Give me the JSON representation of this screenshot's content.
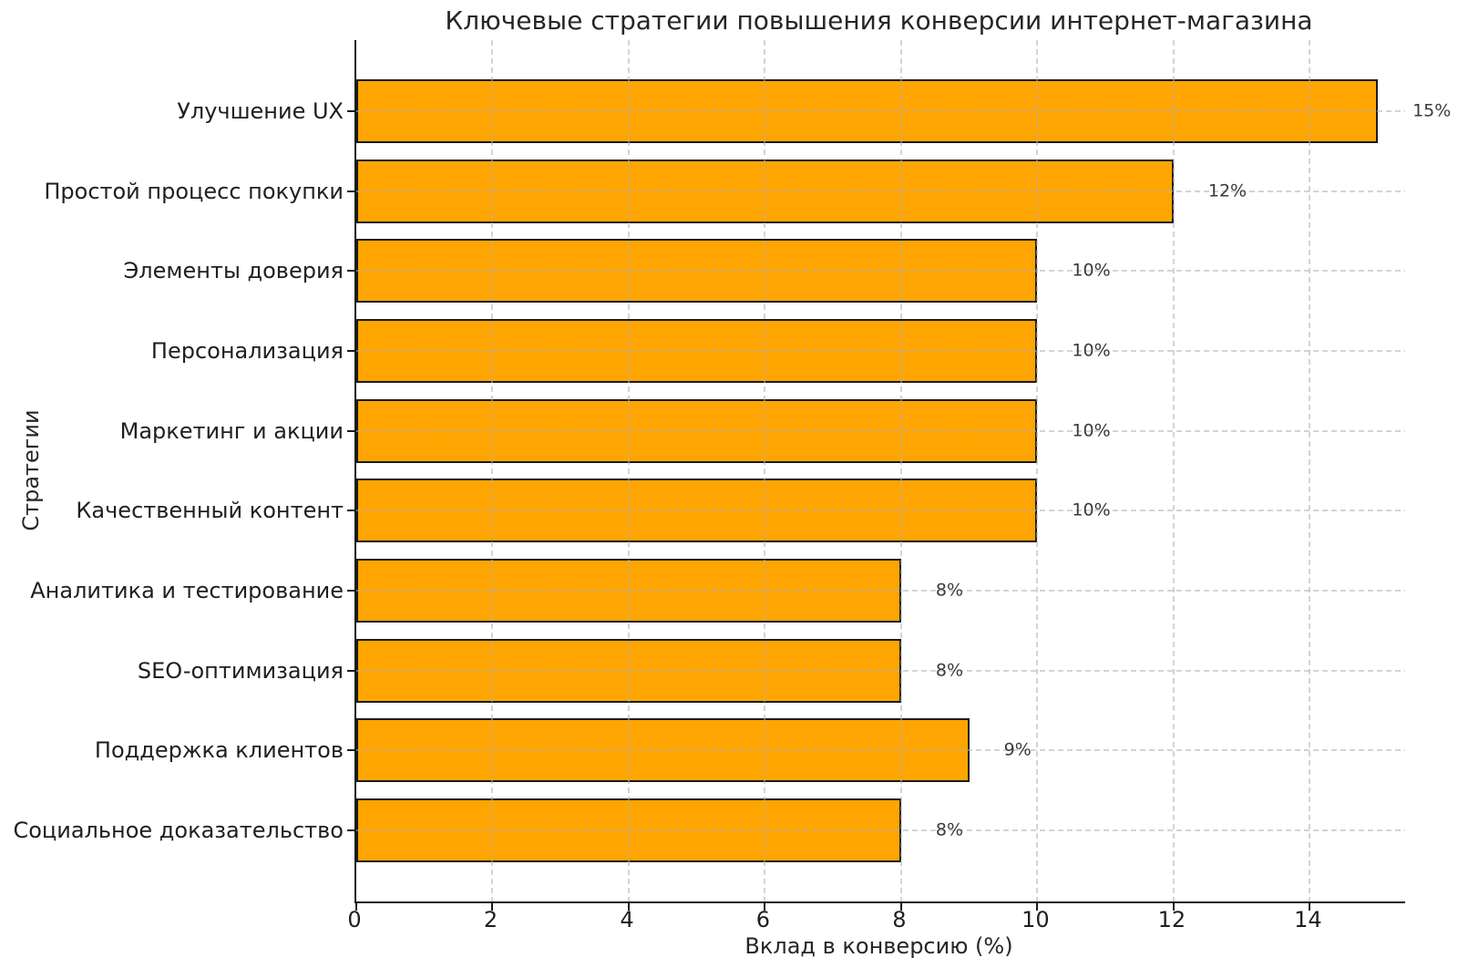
{
  "chart_data": {
    "type": "bar",
    "orientation": "horizontal",
    "title": "Ключевые стратегии повышения конверсии интернет-магазина",
    "xlabel": "Вклад в конверсию (%)",
    "ylabel": "Стратегии",
    "categories": [
      "Улучшение UX",
      "Простой процесс покупки",
      "Элементы доверия",
      "Персонализация",
      "Маркетинг и акции",
      "Качественный контент",
      "Аналитика и тестирование",
      "SEO-оптимизация",
      "Поддержка клиентов",
      "Социальное доказательство"
    ],
    "values": [
      15,
      12,
      10,
      10,
      10,
      10,
      8,
      8,
      9,
      8
    ],
    "value_labels": [
      "15%",
      "12%",
      "10%",
      "10%",
      "10%",
      "10%",
      "8%",
      "8%",
      "9%",
      "8%"
    ],
    "xticks": [
      0,
      2,
      4,
      6,
      8,
      10,
      12,
      14
    ],
    "xtick_labels": [
      "0",
      "2",
      "4",
      "6",
      "8",
      "10",
      "12",
      "14"
    ],
    "xlim": [
      0,
      15.4
    ],
    "grid": "dashed",
    "legend": "none",
    "colors": {
      "bar_fill": "#FFA502",
      "bar_edge": "#1A1A1A",
      "grid": "#D3D3D3",
      "text": "#262626",
      "value_label": "#3A3A3A"
    }
  }
}
